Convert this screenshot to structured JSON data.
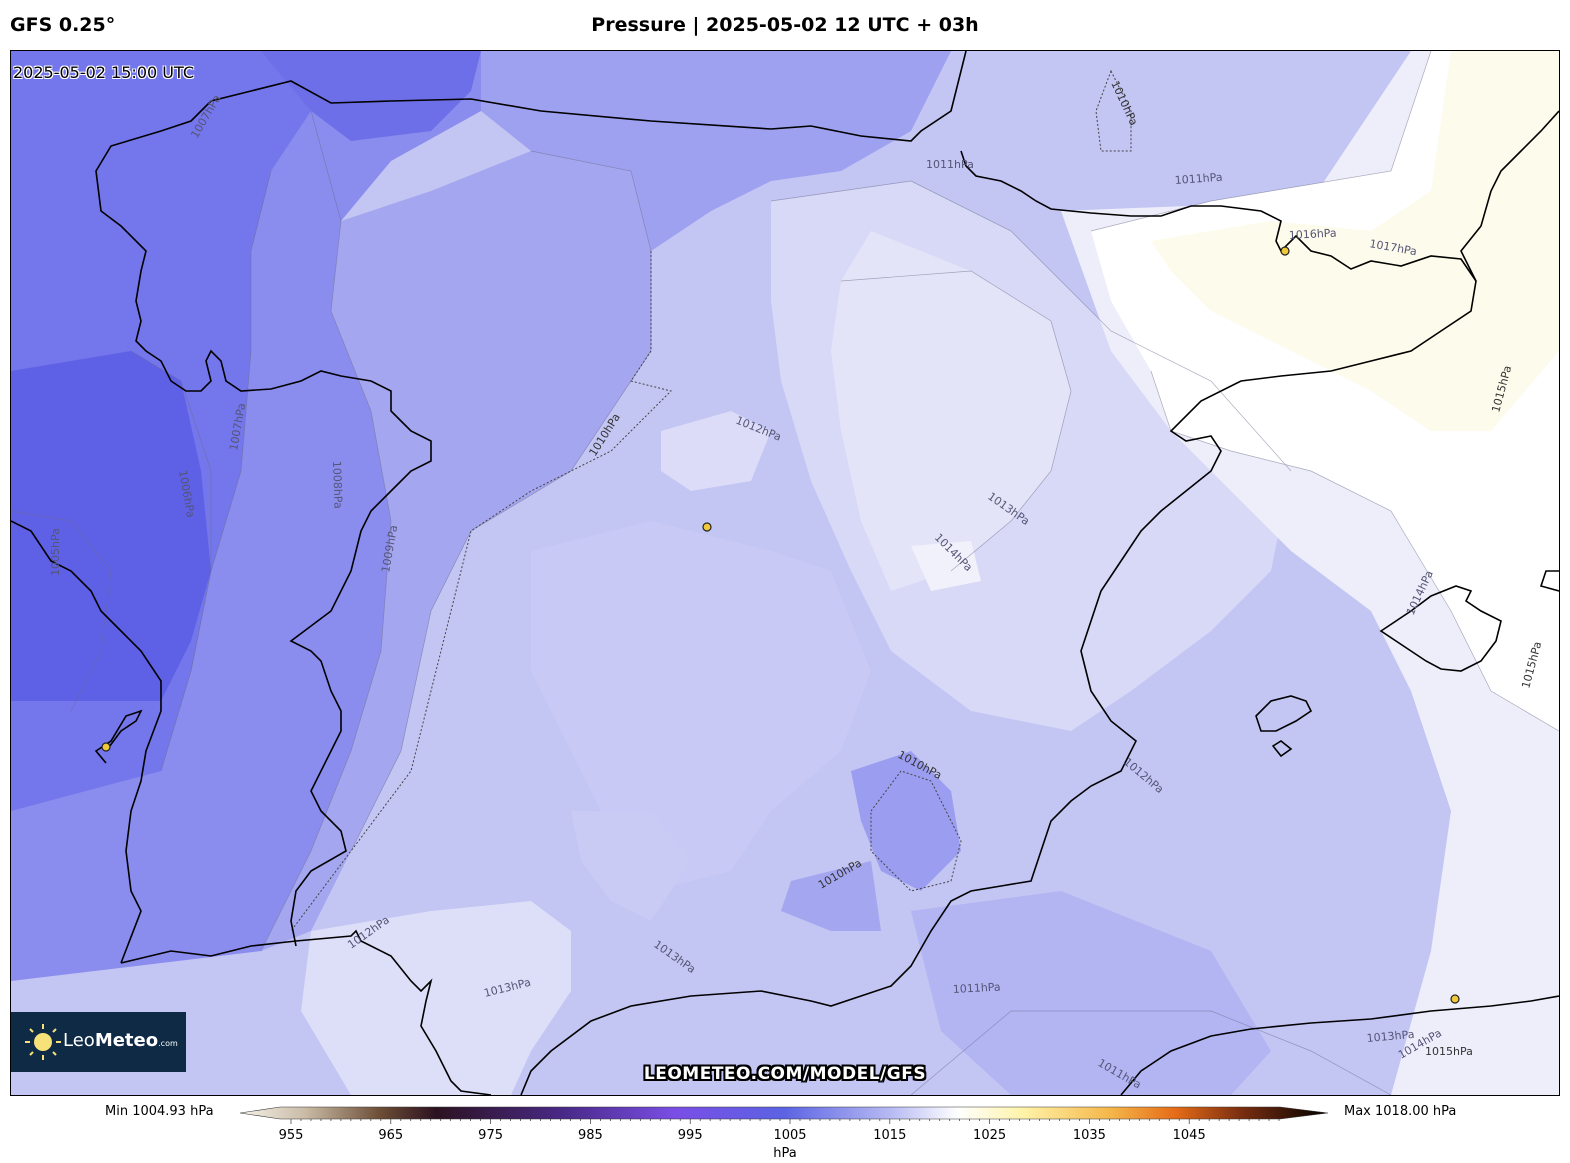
{
  "header": {
    "model": "GFS 0.25°",
    "title": "Pressure | 2025-05-02 12 UTC + 03h"
  },
  "map": {
    "valid_time": "2025-05-02 15:00 UTC",
    "watermark": "LEOMETEO.COM/MODEL/GFS",
    "logo": {
      "prefix": "Leo",
      "brand": "Meteo",
      "domain": ".com"
    },
    "isobar_labels": [
      "1005hPa",
      "1006hPa",
      "1007hPa",
      "1007hPa",
      "1008hPa",
      "1009hPa",
      "1010hPa",
      "1010hPa",
      "1010hPa",
      "1010hPa",
      "1011hPa",
      "1011hPa",
      "1011hPa",
      "1011hPa",
      "1012hPa",
      "1012hPa",
      "1012hPa",
      "1013hPa",
      "1013hPa",
      "1013hPa",
      "1013hPa",
      "1014hPa",
      "1014hPa",
      "1014hPa",
      "1015hPa",
      "1015hPa",
      "1015hPa",
      "1016hPa",
      "1017hPa"
    ],
    "colors": {
      "low": "#5e60e6",
      "mid": "#c3c5f3",
      "neutral": "#ffffff",
      "high": "#fffbe8"
    }
  },
  "colorbar": {
    "min_label": "Min 1004.93 hPa",
    "max_label": "Max 1018.00 hPa",
    "ticks": [
      "955",
      "965",
      "975",
      "985",
      "995",
      "1005",
      "1015",
      "1025",
      "1035",
      "1045"
    ],
    "unit": "hPa"
  }
}
